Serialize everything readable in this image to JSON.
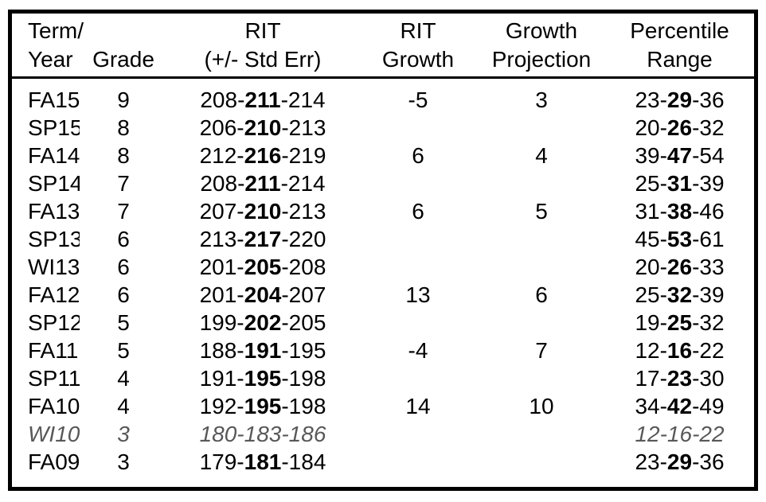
{
  "table": {
    "columns": [
      {
        "id": "term",
        "label": "Term/\nYear"
      },
      {
        "id": "grade",
        "label": "Grade"
      },
      {
        "id": "rit",
        "label": "RIT\n(+/- Std Err)"
      },
      {
        "id": "rit_growth",
        "label": "RIT\nGrowth"
      },
      {
        "id": "growth_projection",
        "label": "Growth\nProjection"
      },
      {
        "id": "percentile_range",
        "label": "Percentile\nRange"
      }
    ],
    "rows": [
      {
        "term": "FA15",
        "grade": "9",
        "rit": "208-211-214",
        "rit_growth": "-5",
        "growth_projection": "3",
        "percentile_range": "23-29-36"
      },
      {
        "term": "SP15",
        "grade": "8",
        "rit": "206-210-213",
        "rit_growth": "",
        "growth_projection": "",
        "percentile_range": "20-26-32"
      },
      {
        "term": "FA14",
        "grade": "8",
        "rit": "212-216-219",
        "rit_growth": "6",
        "growth_projection": "4",
        "percentile_range": "39-47-54"
      },
      {
        "term": "SP14",
        "grade": "7",
        "rit": "208-211-214",
        "rit_growth": "",
        "growth_projection": "",
        "percentile_range": "25-31-39"
      },
      {
        "term": "FA13",
        "grade": "7",
        "rit": "207-210-213",
        "rit_growth": "6",
        "growth_projection": "5",
        "percentile_range": "31-38-46"
      },
      {
        "term": "SP13",
        "grade": "6",
        "rit": "213-217-220",
        "rit_growth": "",
        "growth_projection": "",
        "percentile_range": "45-53-61"
      },
      {
        "term": "WI13",
        "grade": "6",
        "rit": "201-205-208",
        "rit_growth": "",
        "growth_projection": "",
        "percentile_range": "20-26-33"
      },
      {
        "term": "FA12",
        "grade": "6",
        "rit": "201-204-207",
        "rit_growth": "13",
        "growth_projection": "6",
        "percentile_range": "25-32-39"
      },
      {
        "term": "SP12",
        "grade": "5",
        "rit": "199-202-205",
        "rit_growth": "",
        "growth_projection": "",
        "percentile_range": "19-25-32"
      },
      {
        "term": "FA11",
        "grade": "5",
        "rit": "188-191-195",
        "rit_growth": "-4",
        "growth_projection": "7",
        "percentile_range": "12-16-22"
      },
      {
        "term": "SP11",
        "grade": "4",
        "rit": "191-195-198",
        "rit_growth": "",
        "growth_projection": "",
        "percentile_range": "17-23-30"
      },
      {
        "term": "FA10",
        "grade": "4",
        "rit": "192-195-198",
        "rit_growth": "14",
        "growth_projection": "10",
        "percentile_range": "34-42-49"
      },
      {
        "term": "WI10",
        "grade": "3",
        "rit": "180-183-186",
        "rit_growth": "",
        "growth_projection": "",
        "percentile_range": "12-16-22",
        "muted": true
      },
      {
        "term": "FA09",
        "grade": "3",
        "rit": "179-181-184",
        "rit_growth": "",
        "growth_projection": "",
        "percentile_range": "23-29-36"
      }
    ]
  },
  "colors": {
    "text": "#000000",
    "muted_text": "#58585a",
    "border": "#000000",
    "background": "#ffffff"
  }
}
